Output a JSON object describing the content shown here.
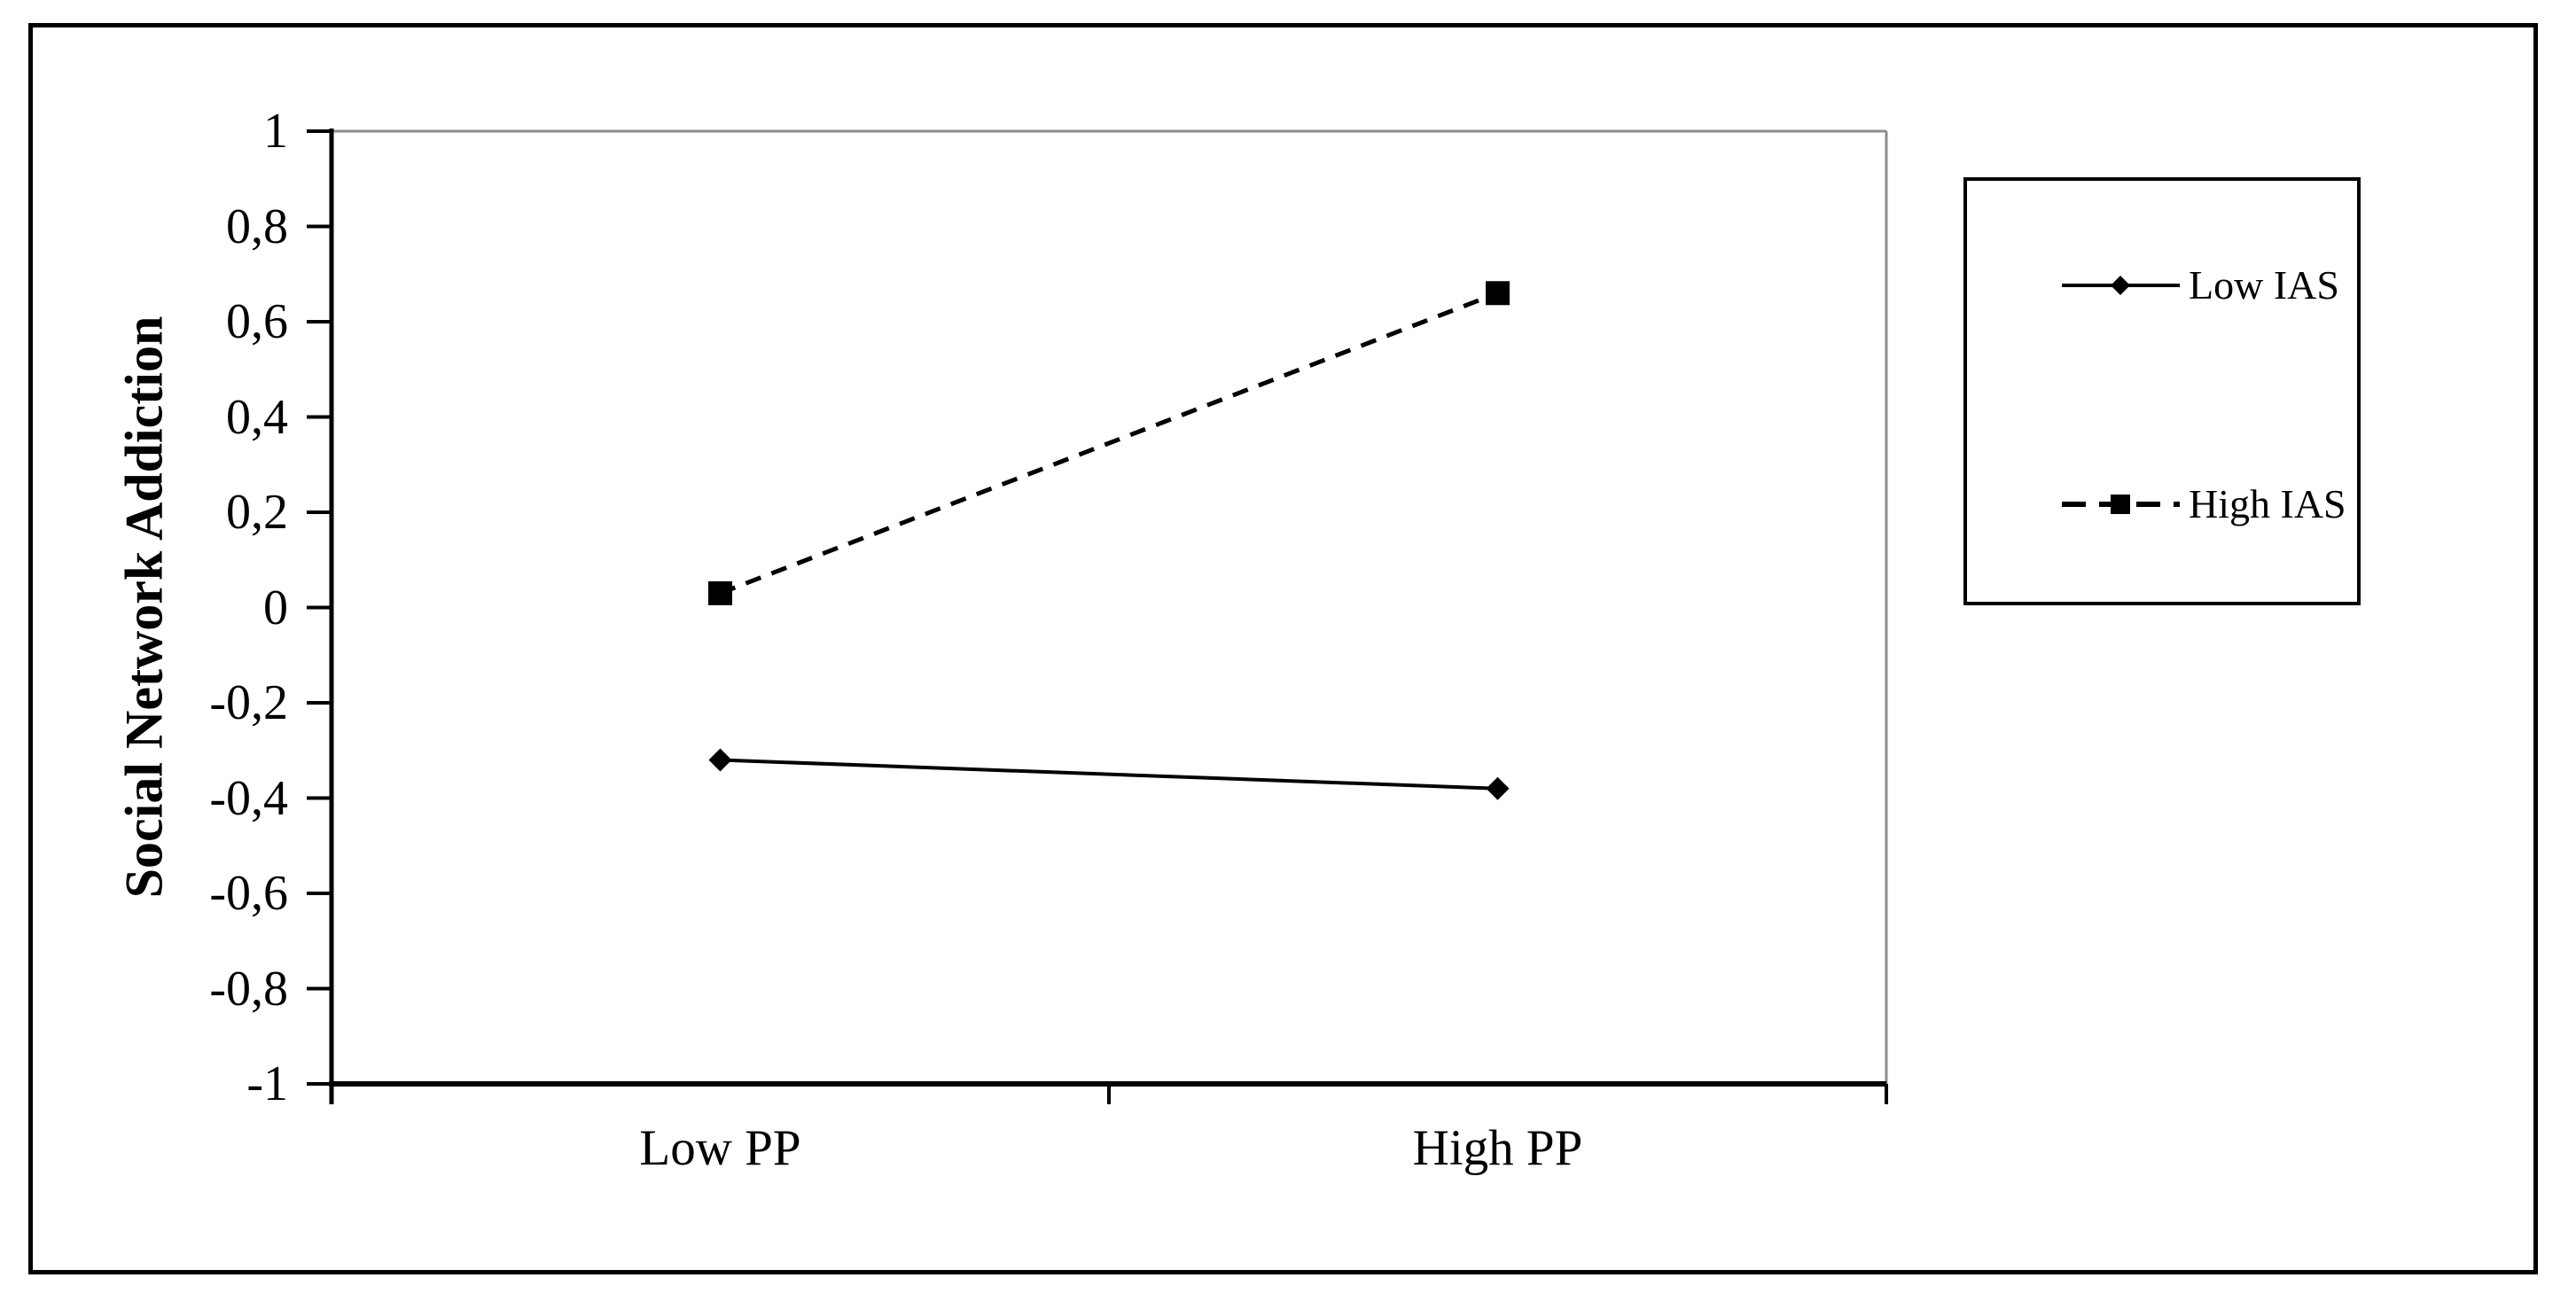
{
  "figure": {
    "background_color": "#ffffff",
    "outer_border_color": "#000000",
    "plot_top_right_border_color": "#8c8c8c",
    "axis_color": "#000000",
    "text_color": "#000000"
  },
  "chart_data": {
    "type": "line",
    "title": "",
    "xlabel": "",
    "ylabel": "Social Network Addiction",
    "categories": [
      "Low PP",
      "High PP"
    ],
    "series": [
      {
        "name": "Low IAS",
        "values": [
          -0.32,
          -0.38
        ],
        "line_style": "solid",
        "marker": "diamond",
        "color": "#000000"
      },
      {
        "name": "High IAS",
        "values": [
          0.03,
          0.66
        ],
        "line_style": "dashed",
        "marker": "square",
        "color": "#000000"
      }
    ],
    "ylim": [
      -1,
      1
    ],
    "y_tick_step": 0.2,
    "decimal_separator": ",",
    "y_tick_labels": [
      "1",
      "0,8",
      "0,6",
      "0,4",
      "0,2",
      "0",
      "-0,2",
      "-0,4",
      "-0,6",
      "-0,8",
      "-1"
    ],
    "grid": false,
    "legend_position": "right",
    "legend_border": true
  }
}
